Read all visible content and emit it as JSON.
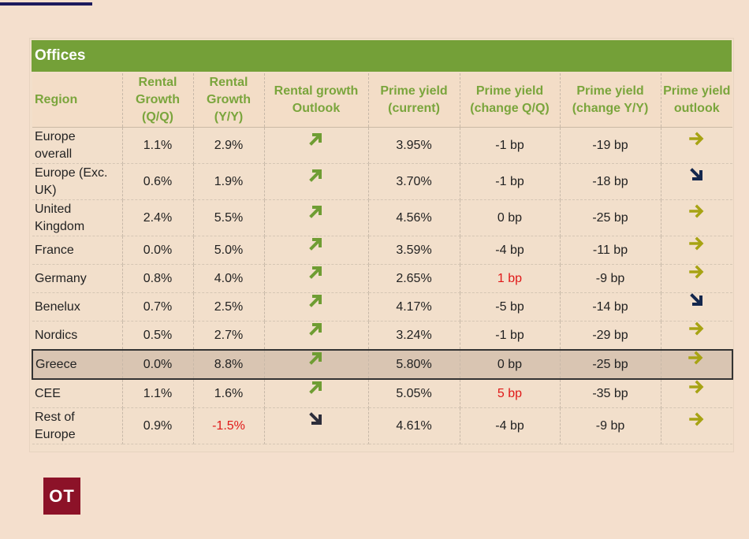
{
  "title": "Offices",
  "headers": {
    "region": "Region",
    "rental_qq": [
      "Rental",
      "Growth",
      "(Q/Q)"
    ],
    "rental_yy": [
      "Rental",
      "Growth",
      "(Y/Y)"
    ],
    "rental_outlook": [
      "Rental growth",
      "Outlook"
    ],
    "yield_current": [
      "Prime yield",
      "(current)"
    ],
    "yield_qq": [
      "Prime yield",
      "(change Q/Q)"
    ],
    "yield_yy": [
      "Prime yield",
      "(change Y/Y)"
    ],
    "yield_outlook": [
      "Prime yield",
      "outlook"
    ]
  },
  "rows": [
    {
      "region": [
        "Europe",
        "overall"
      ],
      "rental_qq": "1.1%",
      "rental_yy": "2.9%",
      "rental_outlook": "up-right-arrow-icon",
      "yield_current": "3.95%",
      "yield_qq": "-1 bp",
      "yield_yy": "-19 bp",
      "yield_outlook": "right-arrow-icon"
    },
    {
      "region": [
        "Europe (Exc.",
        "UK)"
      ],
      "rental_qq": "0.6%",
      "rental_yy": "1.9%",
      "rental_outlook": "up-right-arrow-icon",
      "yield_current": "3.70%",
      "yield_qq": "-1 bp",
      "yield_yy": "-18 bp",
      "yield_outlook": "down-right-arrow-icon"
    },
    {
      "region": [
        "United",
        "Kingdom"
      ],
      "rental_qq": "2.4%",
      "rental_yy": "5.5%",
      "rental_outlook": "up-right-arrow-icon",
      "yield_current": "4.56%",
      "yield_qq": "0 bp",
      "yield_yy": "-25 bp",
      "yield_outlook": "right-arrow-icon"
    },
    {
      "region": [
        "France"
      ],
      "rental_qq": "0.0%",
      "rental_yy": "5.0%",
      "rental_outlook": "up-right-arrow-icon",
      "yield_current": "3.59%",
      "yield_qq": "-4 bp",
      "yield_yy": "-11 bp",
      "yield_outlook": "right-arrow-icon"
    },
    {
      "region": [
        "Germany"
      ],
      "rental_qq": "0.8%",
      "rental_yy": "4.0%",
      "rental_outlook": "up-right-arrow-icon",
      "yield_current": "2.65%",
      "yield_qq": "1 bp",
      "yield_yy": "-9 bp",
      "yield_outlook": "right-arrow-icon"
    },
    {
      "region": [
        "Benelux"
      ],
      "rental_qq": "0.7%",
      "rental_yy": "2.5%",
      "rental_outlook": "up-right-arrow-icon",
      "yield_current": "4.17%",
      "yield_qq": "-5 bp",
      "yield_yy": "-14 bp",
      "yield_outlook": "down-right-arrow-icon"
    },
    {
      "region": [
        "Nordics"
      ],
      "rental_qq": "0.5%",
      "rental_yy": "2.7%",
      "rental_outlook": "up-right-arrow-icon",
      "yield_current": "3.24%",
      "yield_qq": "-1 bp",
      "yield_yy": "-29 bp",
      "yield_outlook": "right-arrow-icon"
    },
    {
      "region": [
        "Greece"
      ],
      "rental_qq": "0.0%",
      "rental_yy": "8.8%",
      "rental_outlook": "up-right-arrow-icon",
      "yield_current": "5.80%",
      "yield_qq": "0 bp",
      "yield_yy": "-25 bp",
      "yield_outlook": "right-arrow-icon"
    },
    {
      "region": [
        "CEE"
      ],
      "rental_qq": "1.1%",
      "rental_yy": "1.6%",
      "rental_outlook": "up-right-arrow-icon",
      "yield_current": "5.05%",
      "yield_qq": "5 bp",
      "yield_yy": "-35 bp",
      "yield_outlook": "right-arrow-icon"
    },
    {
      "region": [
        "Rest of",
        "Europe"
      ],
      "rental_qq": "0.9%",
      "rental_yy": "-1.5%",
      "rental_outlook": "down-right-arrow-icon",
      "yield_current": "4.61%",
      "yield_qq": "-4 bp",
      "yield_yy": "-9 bp",
      "yield_outlook": "right-arrow-icon"
    }
  ],
  "highlighted_row": "Greece",
  "colors": {
    "header_green": "#74a038",
    "header_text": "#7aa53c",
    "background": "#f4dfcd",
    "negative_red": "#e01818",
    "arrow_green": "#6f9d33",
    "arrow_olive": "#a7a313",
    "arrow_navy": "#14274d",
    "arrow_dark": "#2d2d3a",
    "logo_bg": "#8c1228"
  },
  "logo": {
    "text": "OT"
  }
}
